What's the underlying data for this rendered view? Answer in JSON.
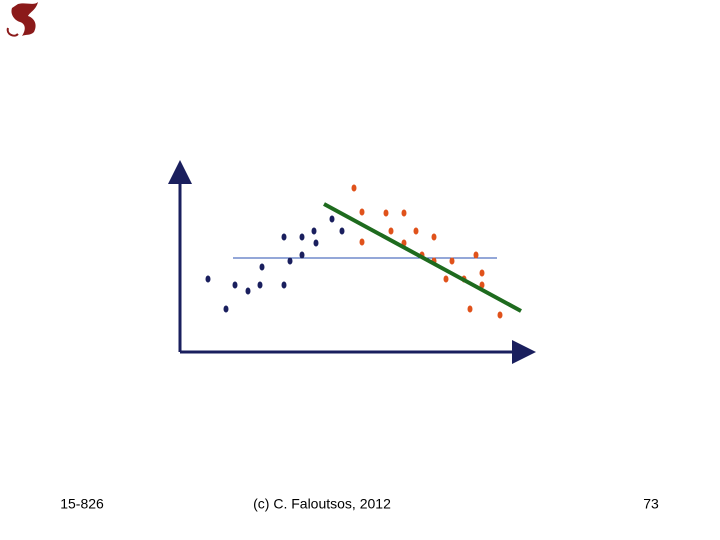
{
  "footer": {
    "course": "15-826",
    "copyright": "(c) C. Faloutsos, 2012",
    "page": "73"
  }
}
